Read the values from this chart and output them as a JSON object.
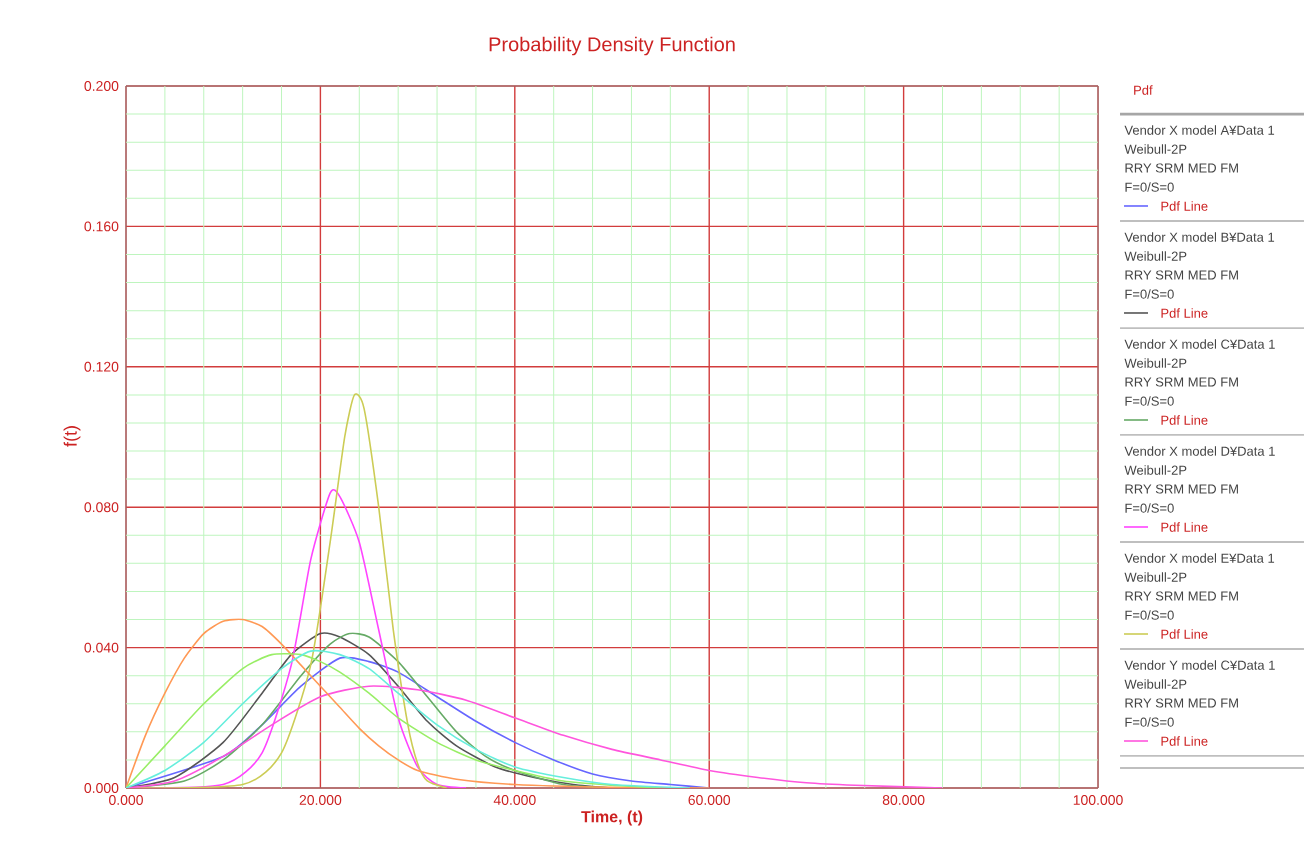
{
  "chart_data": {
    "type": "line",
    "title": "Probability Density Function",
    "xlabel": "Time, (t)",
    "ylabel": "f(t)",
    "legend_title": "Pdf",
    "legend": "right",
    "grid": true,
    "marker": "none",
    "line_style": "solid",
    "xlim": [
      0,
      100
    ],
    "ylim": [
      0,
      0.2
    ],
    "xticks": [
      {
        "value": 0,
        "label": "0.000"
      },
      {
        "value": 20,
        "label": "20.000"
      },
      {
        "value": 40,
        "label": "40.000"
      },
      {
        "value": 60,
        "label": "60.000"
      },
      {
        "value": 80,
        "label": "80.000"
      },
      {
        "value": 100,
        "label": "100.000"
      },
      {
        "value": 4,
        "label": null
      },
      {
        "value": 8,
        "label": null
      },
      {
        "value": 12,
        "label": null
      },
      {
        "value": 16,
        "label": null
      },
      {
        "value": 24,
        "label": null
      },
      {
        "value": 28,
        "label": null
      },
      {
        "value": 32,
        "label": null
      },
      {
        "value": 36,
        "label": null
      },
      {
        "value": 44,
        "label": null
      },
      {
        "value": 48,
        "label": null
      },
      {
        "value": 52,
        "label": null
      },
      {
        "value": 56,
        "label": null
      },
      {
        "value": 64,
        "label": null
      },
      {
        "value": 68,
        "label": null
      },
      {
        "value": 72,
        "label": null
      },
      {
        "value": 76,
        "label": null
      },
      {
        "value": 84,
        "label": null
      },
      {
        "value": 88,
        "label": null
      },
      {
        "value": 92,
        "label": null
      },
      {
        "value": 96,
        "label": null
      }
    ],
    "yticks": [
      {
        "value": 0,
        "label": "0.000"
      },
      {
        "value": 0.04,
        "label": "0.040"
      },
      {
        "value": 0.08,
        "label": "0.080"
      },
      {
        "value": 0.12,
        "label": "0.120"
      },
      {
        "value": 0.16,
        "label": "0.160"
      },
      {
        "value": 0.2,
        "label": "0.200"
      },
      {
        "value": 0.008,
        "label": null
      },
      {
        "value": 0.016,
        "label": null
      },
      {
        "value": 0.024,
        "label": null
      },
      {
        "value": 0.032,
        "label": null
      },
      {
        "value": 0.048,
        "label": null
      },
      {
        "value": 0.056,
        "label": null
      },
      {
        "value": 0.064,
        "label": null
      },
      {
        "value": 0.072,
        "label": null
      },
      {
        "value": 0.088,
        "label": null
      },
      {
        "value": 0.096,
        "label": null
      },
      {
        "value": 0.104,
        "label": null
      },
      {
        "value": 0.112,
        "label": null
      },
      {
        "value": 0.128,
        "label": null
      },
      {
        "value": 0.136,
        "label": null
      },
      {
        "value": 0.144,
        "label": null
      },
      {
        "value": 0.152,
        "label": null
      },
      {
        "value": 0.168,
        "label": null
      },
      {
        "value": 0.176,
        "label": null
      },
      {
        "value": 0.184,
        "label": null
      },
      {
        "value": 0.192,
        "label": null
      }
    ],
    "annotations": [
      "Weibull-2P",
      "RRY SRM MED FM",
      "F=0/S=0",
      "Pdf Line"
    ],
    "series": [
      {
        "name": "Vendor X model A¥Data 1",
        "color": "#6666ff",
        "x": [
          0,
          5,
          10,
          14,
          18,
          22,
          25,
          28,
          32,
          36,
          40,
          44,
          48,
          52,
          56,
          60
        ],
        "values": [
          0,
          null,
          0.009,
          0.018,
          0.029,
          0.037,
          0.036,
          0.033,
          0.026,
          0.019,
          0.013,
          0.008,
          0.004,
          0.002,
          0.001,
          0
        ]
      },
      {
        "name": "Vendor X model B¥Data 1",
        "color": "#555555",
        "x": [
          0,
          5,
          10,
          14,
          17,
          20,
          22,
          25,
          28,
          31,
          34,
          38,
          42,
          46,
          50
        ],
        "values": [
          0,
          0.003,
          0.013,
          0.027,
          0.038,
          0.044,
          0.043,
          0.038,
          0.029,
          0.019,
          0.012,
          0.006,
          0.003,
          0.001,
          0
        ]
      },
      {
        "name": "Vendor X model C¥Data 1",
        "color": "#66aa66",
        "x": [
          0,
          6,
          10,
          14,
          18,
          21,
          23,
          25,
          28,
          31,
          34,
          37,
          40,
          45,
          50
        ],
        "values": [
          0,
          0.002,
          0.008,
          0.018,
          0.032,
          0.041,
          0.044,
          0.043,
          0.036,
          0.026,
          0.016,
          0.009,
          0.005,
          0.001,
          0
        ]
      },
      {
        "name": "Vendor X model D¥Data 1",
        "color": "#ff44ff",
        "x": [
          0,
          10,
          14,
          17,
          19,
          21,
          22,
          24,
          26,
          28,
          30,
          32,
          35
        ],
        "values": [
          0,
          0.001,
          0.01,
          0.035,
          0.065,
          0.084,
          0.083,
          0.07,
          0.045,
          0.02,
          0.006,
          0.001,
          0
        ]
      },
      {
        "name": "Vendor X model E¥Data 1",
        "color": "#cccc55",
        "x": [
          0,
          12,
          16,
          19,
          21,
          22.5,
          23.5,
          24.5,
          26,
          27.5,
          29,
          30,
          31,
          33
        ],
        "values": [
          0,
          0.001,
          0.01,
          0.035,
          0.07,
          0.1,
          0.112,
          0.108,
          0.08,
          0.045,
          0.018,
          0.007,
          0.002,
          0
        ]
      },
      {
        "name": "Vendor Y model C¥Data 1",
        "color": "#ff55dd",
        "x": [
          0,
          5,
          10,
          15,
          20,
          25,
          30,
          35,
          40,
          45,
          50,
          55,
          60,
          65,
          70,
          75,
          84
        ],
        "values": [
          0,
          0.002,
          0.009,
          0.018,
          0.026,
          0.029,
          0.028,
          0.025,
          0.02,
          0.015,
          0.011,
          0.008,
          0.005,
          0.003,
          0.0015,
          0.0008,
          0
        ]
      },
      {
        "color": "#ff9955",
        "x": [
          0,
          2,
          4,
          6,
          8,
          10,
          12,
          14,
          16,
          18,
          20,
          22,
          24,
          26,
          28,
          30,
          34,
          40,
          50,
          60
        ],
        "values": [
          0,
          0.015,
          0.027,
          0.037,
          0.044,
          0.0475,
          0.048,
          0.046,
          0.041,
          0.035,
          0.029,
          0.023,
          0.017,
          0.012,
          0.008,
          0.005,
          0.0025,
          0.001,
          0.0002,
          0
        ]
      },
      {
        "color": "#99ee66",
        "x": [
          0,
          4,
          8,
          12,
          15,
          18,
          20,
          22,
          25,
          28,
          32,
          36,
          40,
          45,
          50,
          55
        ],
        "values": [
          0,
          0.012,
          0.024,
          0.034,
          0.038,
          0.038,
          0.036,
          0.033,
          0.027,
          0.02,
          0.013,
          0.008,
          0.005,
          0.002,
          0.0008,
          0
        ]
      },
      {
        "color": "#66eedd",
        "x": [
          0,
          4,
          8,
          12,
          16,
          19,
          22,
          25,
          28,
          32,
          36,
          40,
          45,
          50,
          58
        ],
        "values": [
          0,
          0.005,
          0.013,
          0.024,
          0.034,
          0.039,
          0.038,
          0.034,
          0.027,
          0.018,
          0.011,
          0.006,
          0.003,
          0.001,
          0
        ]
      }
    ]
  }
}
